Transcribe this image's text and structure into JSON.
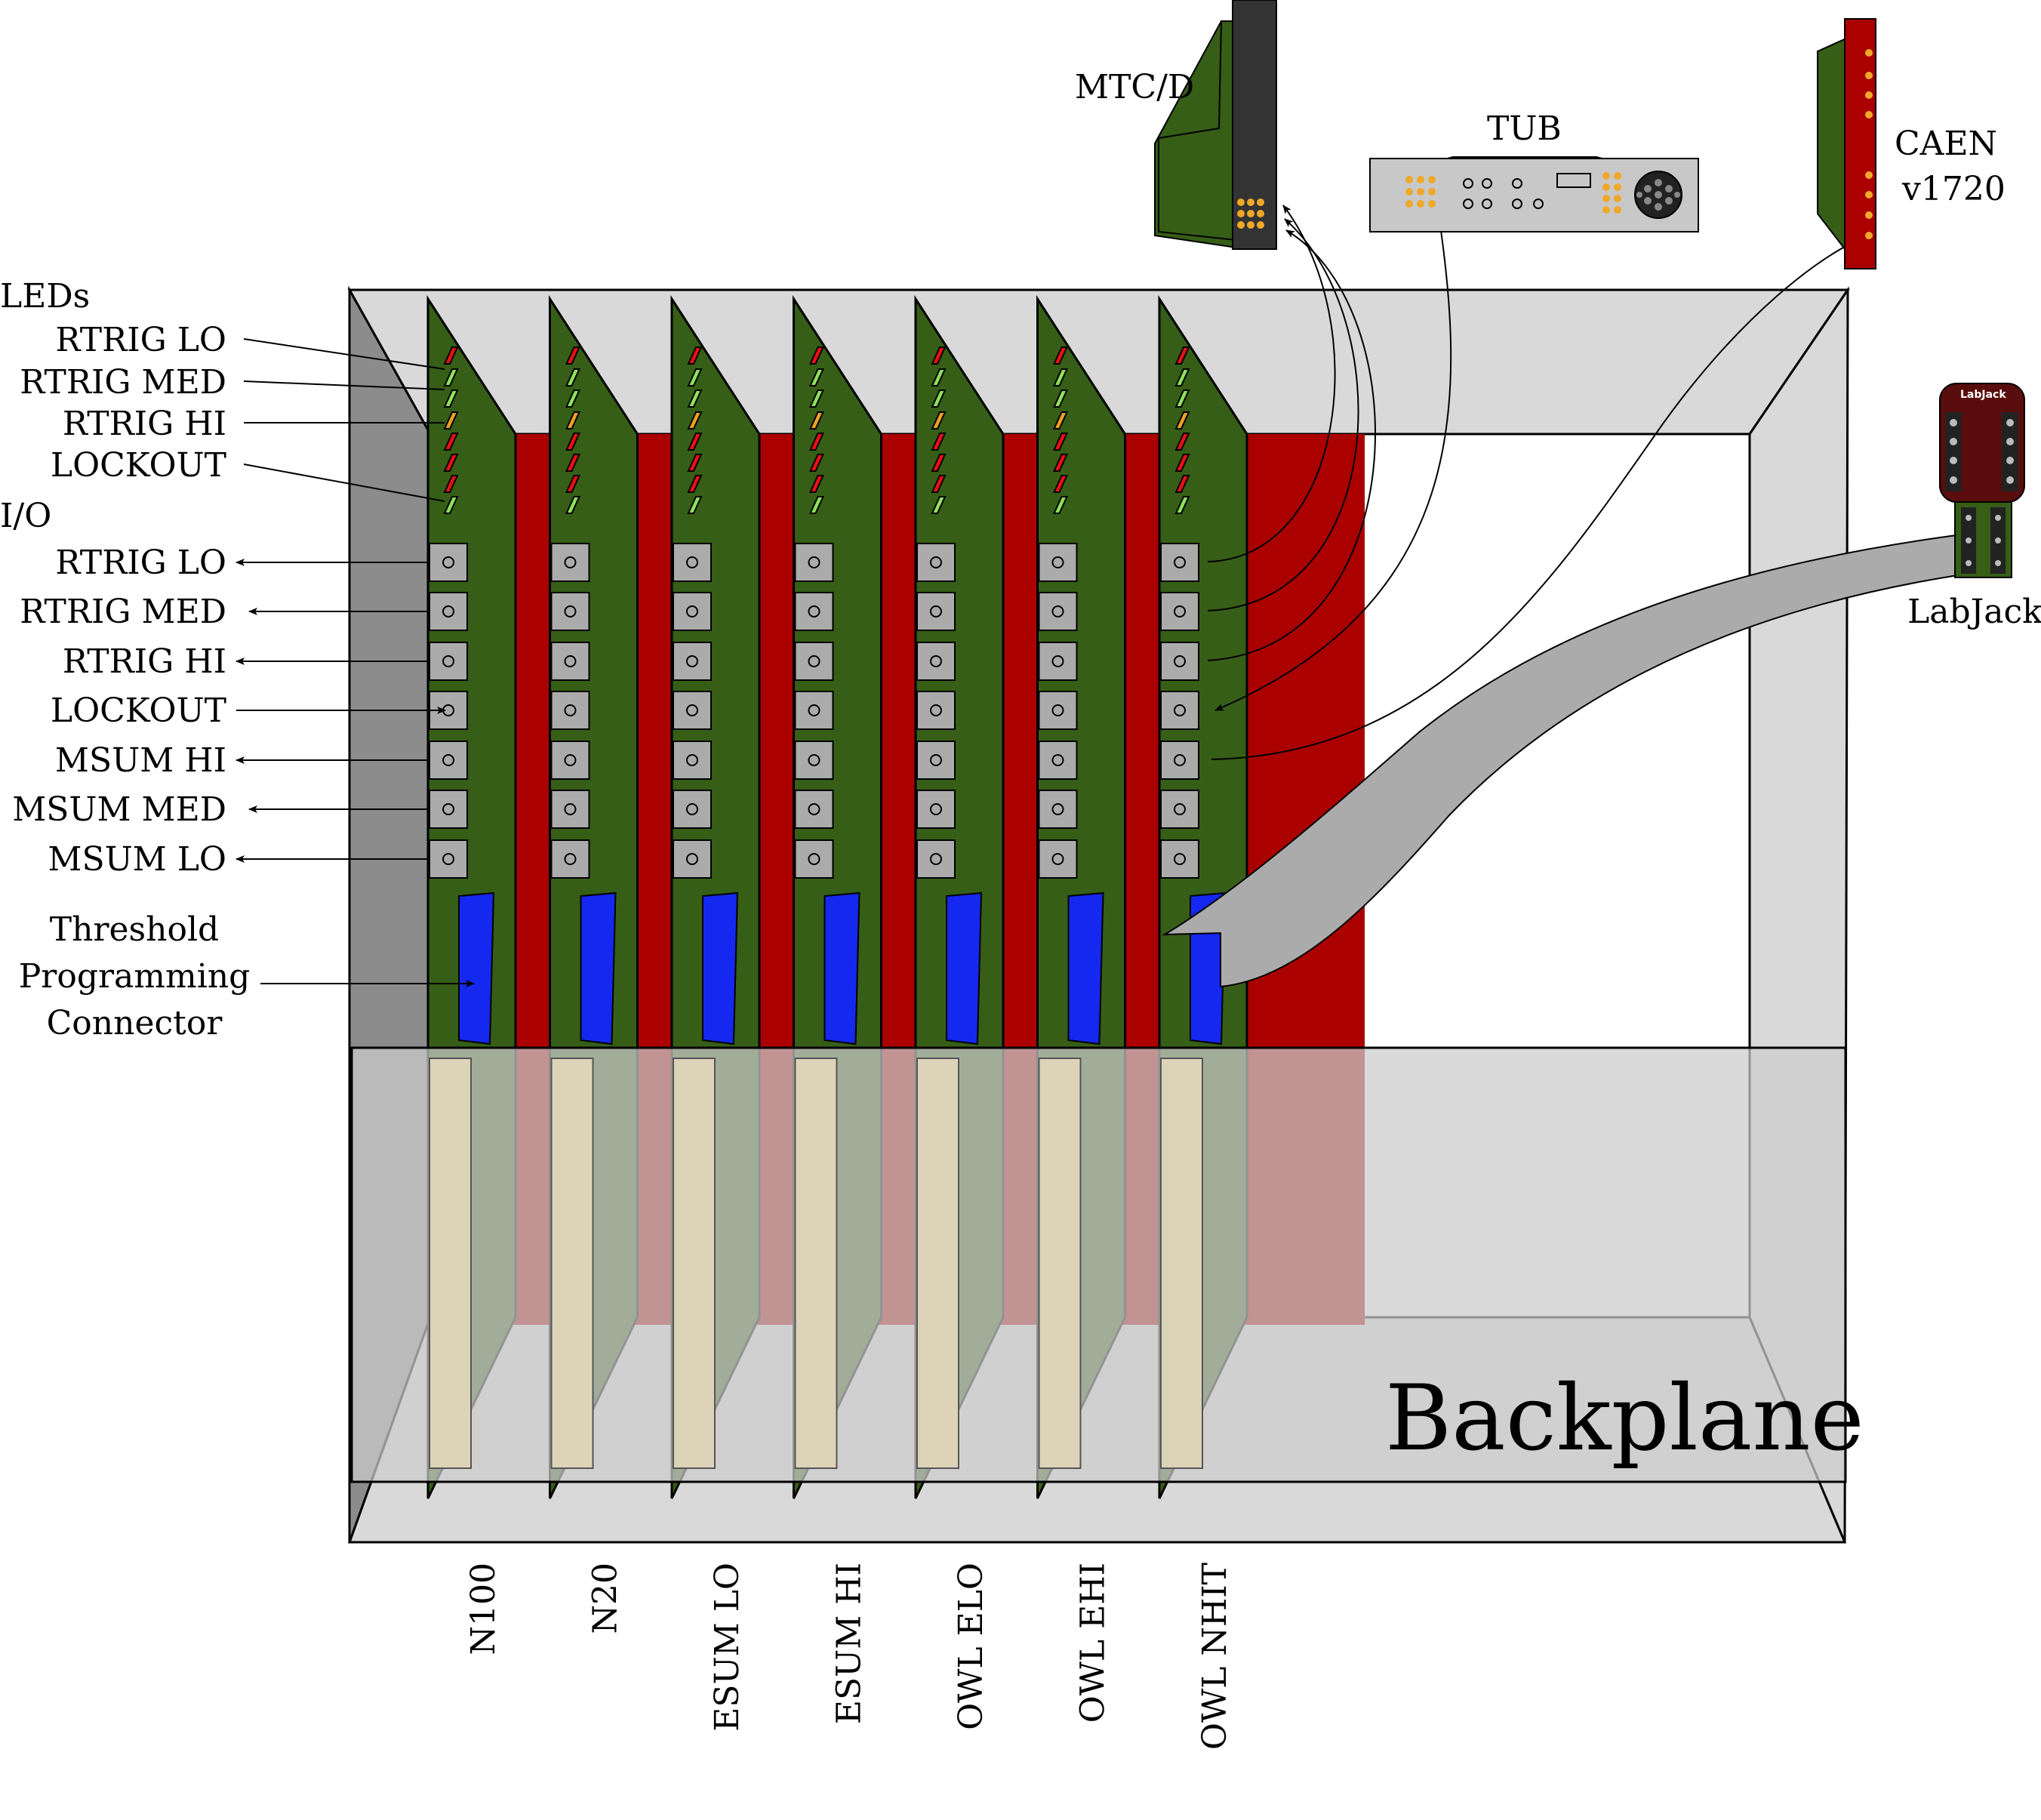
{
  "crate": {
    "backplane_label": "Backplane",
    "colors": {
      "frame": "#d9d9d9",
      "side_wall": "#8c8c8c",
      "board": "#365e17",
      "red_fill": "#aa0000",
      "connector_blue": "#1428f0",
      "card_edge": "#dcd3b9",
      "port": "#ababab"
    }
  },
  "boards": [
    {
      "label": "N100"
    },
    {
      "label": "N20"
    },
    {
      "label": "ESUM LO"
    },
    {
      "label": "ESUM HI"
    },
    {
      "label": "OWL ELO"
    },
    {
      "label": "OWL EHI"
    },
    {
      "label": "OWL NHIT"
    }
  ],
  "leds": {
    "heading": "LEDs",
    "items": [
      "RTRIG LO",
      "RTRIG MED",
      "RTRIG HI",
      "LOCKOUT"
    ],
    "colors": [
      "#ee1010",
      "#8fe05a",
      "#8fe05a",
      "#f0a020",
      "#ee1010",
      "#ee1010",
      "#ee1010",
      "#8fe05a"
    ]
  },
  "io": {
    "heading": "I/O",
    "items": [
      "RTRIG LO",
      "RTRIG MED",
      "RTRIG HI",
      "LOCKOUT",
      "MSUM HI",
      "MSUM MED",
      "MSUM LO"
    ]
  },
  "threshold": {
    "lines": [
      "Threshold",
      "Programming",
      "Connector"
    ]
  },
  "devices": {
    "mtcd": {
      "label": "MTC/D"
    },
    "tub": {
      "label": "TUB"
    },
    "caen": {
      "label_line1": "CAEN",
      "label_line2": "v1720"
    },
    "labjack": {
      "label": "LabJack",
      "logo_text": "LabJack"
    }
  }
}
